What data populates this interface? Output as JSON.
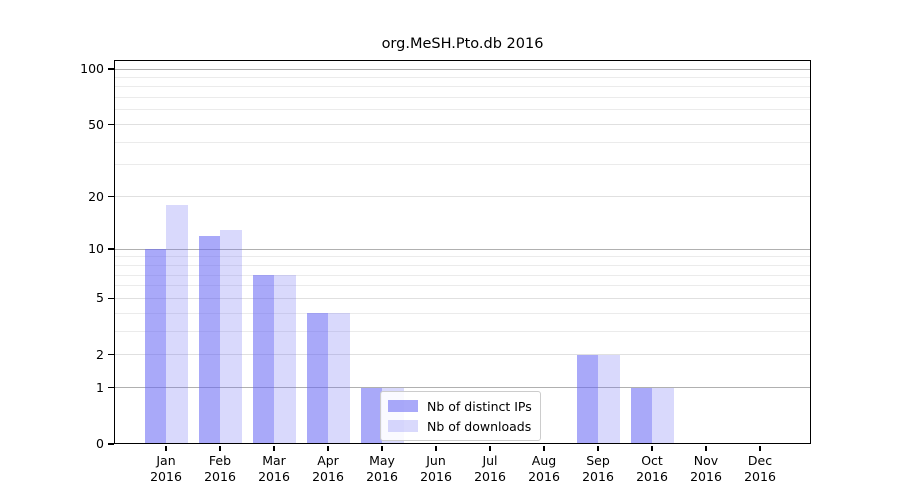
{
  "chart_data": {
    "type": "bar",
    "title": "org.MeSH.Pto.db 2016",
    "categories": [
      "Jan",
      "Feb",
      "Mar",
      "Apr",
      "May",
      "Jun",
      "Jul",
      "Aug",
      "Sep",
      "Oct",
      "Nov",
      "Dec"
    ],
    "x_year_label": "2016",
    "series": [
      {
        "name": "Nb of distinct IPs",
        "color": "#6666F58F",
        "color_hex_on_white": "#a9a9f7",
        "values": [
          10,
          12,
          7,
          4,
          1,
          0,
          0,
          0,
          2,
          1,
          0,
          0
        ]
      },
      {
        "name": "Nb of downloads",
        "color": "#6666F540",
        "color_hex_on_white": "#d9d9fa",
        "values": [
          18,
          13,
          7,
          4,
          1,
          0,
          0,
          0,
          2,
          1,
          0,
          0
        ]
      }
    ],
    "y_axis": {
      "scale": "log1p",
      "ticks": [
        0,
        1,
        2,
        5,
        10,
        20,
        50,
        100
      ],
      "minor_ticks": [
        3,
        4,
        6,
        7,
        8,
        9,
        30,
        40,
        60,
        70,
        80,
        90
      ],
      "range": [
        0,
        100
      ]
    },
    "grid": {
      "enabled": true,
      "major_color": "#b0b0b0",
      "mid_color": "#e0e0e0",
      "minor_color": "#ebebeb"
    },
    "legend": {
      "position": "lower-center",
      "border_color": "#cccccc"
    }
  }
}
